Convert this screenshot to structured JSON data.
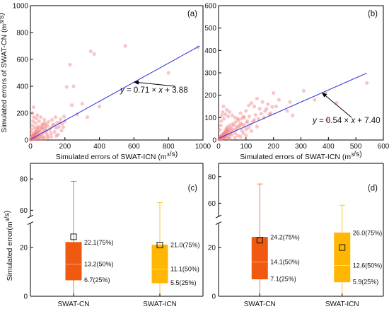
{
  "chart_data": [
    {
      "id": "a",
      "type": "scatter",
      "panel_label": "(a)",
      "xlabel": "Simulated errors of SWAT-ICN (m³/s)",
      "ylabel": "Simulated errors of SWAT-CN (m³/s)",
      "xlim": [
        0,
        1000
      ],
      "ylim": [
        0,
        1000
      ],
      "xticks": [
        0,
        200,
        400,
        600,
        800,
        1000
      ],
      "yticks": [
        0,
        200,
        400,
        600,
        800,
        1000
      ],
      "fit": {
        "slope": 0.71,
        "intercept": 3.88,
        "x_range": [
          0,
          980
        ],
        "equation": "y = 0.71 × x + 3.88"
      },
      "points_color": "#f08080",
      "line_color": "#2b2bd9",
      "points": [
        [
          2,
          5
        ],
        [
          4,
          12
        ],
        [
          6,
          3
        ],
        [
          8,
          20
        ],
        [
          10,
          8
        ],
        [
          12,
          30
        ],
        [
          14,
          15
        ],
        [
          16,
          5
        ],
        [
          18,
          40
        ],
        [
          20,
          22
        ],
        [
          22,
          10
        ],
        [
          25,
          35
        ],
        [
          28,
          18
        ],
        [
          30,
          50
        ],
        [
          32,
          12
        ],
        [
          35,
          28
        ],
        [
          38,
          60
        ],
        [
          40,
          20
        ],
        [
          42,
          45
        ],
        [
          45,
          8
        ],
        [
          48,
          32
        ],
        [
          50,
          70
        ],
        [
          55,
          25
        ],
        [
          60,
          40
        ],
        [
          65,
          90
        ],
        [
          70,
          30
        ],
        [
          75,
          55
        ],
        [
          80,
          20
        ],
        [
          85,
          65
        ],
        [
          90,
          100
        ],
        [
          95,
          45
        ],
        [
          100,
          30
        ],
        [
          110,
          75
        ],
        [
          120,
          50
        ],
        [
          130,
          110
        ],
        [
          140,
          60
        ],
        [
          150,
          90
        ],
        [
          160,
          40
        ],
        [
          170,
          130
        ],
        [
          180,
          70
        ],
        [
          5,
          55
        ],
        [
          8,
          80
        ],
        [
          10,
          110
        ],
        [
          15,
          140
        ],
        [
          20,
          170
        ],
        [
          12,
          200
        ],
        [
          25,
          95
        ],
        [
          30,
          125
        ],
        [
          18,
          245
        ],
        [
          35,
          160
        ],
        [
          40,
          185
        ],
        [
          50,
          140
        ],
        [
          60,
          170
        ],
        [
          70,
          120
        ],
        [
          80,
          150
        ],
        [
          45,
          100
        ],
        [
          200,
          140
        ],
        [
          210,
          395
        ],
        [
          230,
          560
        ],
        [
          240,
          260
        ],
        [
          250,
          400
        ],
        [
          270,
          190
        ],
        [
          300,
          270
        ],
        [
          330,
          170
        ],
        [
          350,
          660
        ],
        [
          370,
          640
        ],
        [
          400,
          250
        ],
        [
          550,
          700
        ],
        [
          800,
          500
        ],
        [
          970,
          690
        ],
        [
          3,
          2
        ],
        [
          5,
          6
        ],
        [
          7,
          15
        ],
        [
          9,
          4
        ],
        [
          11,
          25
        ],
        [
          13,
          9
        ],
        [
          15,
          18
        ],
        [
          17,
          35
        ],
        [
          19,
          14
        ],
        [
          21,
          45
        ],
        [
          23,
          28
        ],
        [
          26,
          60
        ],
        [
          29,
          42
        ],
        [
          33,
          75
        ],
        [
          36,
          52
        ],
        [
          39,
          88
        ],
        [
          44,
          62
        ],
        [
          52,
          84
        ],
        [
          58,
          58
        ],
        [
          63,
          105
        ],
        [
          68,
          78
        ],
        [
          72,
          96
        ],
        [
          78,
          118
        ],
        [
          84,
          86
        ],
        [
          88,
          125
        ],
        [
          92,
          70
        ],
        [
          98,
          108
        ],
        [
          105,
          135
        ],
        [
          115,
          92
        ],
        [
          125,
          150
        ],
        [
          135,
          115
        ],
        [
          145,
          170
        ],
        [
          155,
          128
        ],
        [
          165,
          98
        ],
        [
          175,
          155
        ],
        [
          185,
          120
        ],
        [
          195,
          175
        ],
        [
          190,
          95
        ],
        [
          60,
          10
        ],
        [
          100,
          15
        ],
        [
          120,
          25
        ],
        [
          150,
          30
        ],
        [
          30,
          5
        ],
        [
          75,
          8
        ]
      ]
    },
    {
      "id": "b",
      "type": "scatter",
      "panel_label": "(b)",
      "xlabel": "Simulated errors of SWAT-ICN (m³/s)",
      "ylabel": "",
      "xlim": [
        0,
        600
      ],
      "ylim": [
        0,
        600
      ],
      "xticks": [
        0,
        100,
        200,
        300,
        400,
        500,
        600
      ],
      "yticks": [
        0,
        100,
        200,
        300,
        400,
        500,
        600
      ],
      "fit": {
        "slope": 0.54,
        "intercept": 7.4,
        "x_range": [
          0,
          540
        ],
        "equation": "y = 0.54 × x + 7.40"
      },
      "points_color": "#f08080",
      "line_color": "#2b2bd9",
      "points": [
        [
          2,
          4
        ],
        [
          4,
          10
        ],
        [
          6,
          3
        ],
        [
          8,
          16
        ],
        [
          10,
          7
        ],
        [
          12,
          22
        ],
        [
          14,
          12
        ],
        [
          16,
          5
        ],
        [
          18,
          28
        ],
        [
          20,
          18
        ],
        [
          22,
          9
        ],
        [
          24,
          34
        ],
        [
          26,
          15
        ],
        [
          28,
          40
        ],
        [
          30,
          11
        ],
        [
          32,
          25
        ],
        [
          34,
          48
        ],
        [
          36,
          18
        ],
        [
          38,
          36
        ],
        [
          40,
          8
        ],
        [
          42,
          28
        ],
        [
          45,
          55
        ],
        [
          48,
          22
        ],
        [
          50,
          38
        ],
        [
          55,
          65
        ],
        [
          60,
          30
        ],
        [
          65,
          50
        ],
        [
          70,
          20
        ],
        [
          75,
          58
        ],
        [
          80,
          75
        ],
        [
          85,
          42
        ],
        [
          90,
          30
        ],
        [
          95,
          62
        ],
        [
          100,
          48
        ],
        [
          105,
          85
        ],
        [
          110,
          55
        ],
        [
          115,
          70
        ],
        [
          120,
          40
        ],
        [
          130,
          90
        ],
        [
          140,
          60
        ],
        [
          5,
          45
        ],
        [
          8,
          65
        ],
        [
          10,
          85
        ],
        [
          12,
          110
        ],
        [
          15,
          125
        ],
        [
          18,
          150
        ],
        [
          20,
          95
        ],
        [
          25,
          115
        ],
        [
          30,
          135
        ],
        [
          35,
          105
        ],
        [
          40,
          125
        ],
        [
          50,
          110
        ],
        [
          60,
          100
        ],
        [
          70,
          95
        ],
        [
          80,
          120
        ],
        [
          90,
          105
        ],
        [
          100,
          130
        ],
        [
          110,
          155
        ],
        [
          120,
          165
        ],
        [
          130,
          150
        ],
        [
          140,
          185
        ],
        [
          150,
          140
        ],
        [
          160,
          170
        ],
        [
          170,
          130
        ],
        [
          180,
          160
        ],
        [
          190,
          120
        ],
        [
          200,
          210
        ],
        [
          210,
          150
        ],
        [
          220,
          180
        ],
        [
          250,
          130
        ],
        [
          260,
          170
        ],
        [
          270,
          110
        ],
        [
          310,
          220
        ],
        [
          350,
          180
        ],
        [
          390,
          210
        ],
        [
          395,
          90
        ],
        [
          430,
          165
        ],
        [
          540,
          255
        ],
        [
          3,
          2
        ],
        [
          5,
          5
        ],
        [
          7,
          12
        ],
        [
          9,
          3
        ],
        [
          11,
          18
        ],
        [
          13,
          8
        ],
        [
          15,
          14
        ],
        [
          17,
          26
        ],
        [
          19,
          11
        ],
        [
          21,
          32
        ],
        [
          23,
          20
        ],
        [
          25,
          44
        ],
        [
          27,
          30
        ],
        [
          29,
          52
        ],
        [
          31,
          36
        ],
        [
          33,
          58
        ],
        [
          37,
          42
        ],
        [
          41,
          66
        ],
        [
          46,
          48
        ],
        [
          52,
          72
        ],
        [
          57,
          46
        ],
        [
          62,
          80
        ],
        [
          67,
          60
        ],
        [
          72,
          88
        ],
        [
          78,
          66
        ],
        [
          84,
          95
        ],
        [
          88,
          70
        ],
        [
          94,
          100
        ],
        [
          102,
          78
        ],
        [
          112,
          105
        ],
        [
          125,
          82
        ],
        [
          135,
          112
        ],
        [
          145,
          95
        ],
        [
          155,
          118
        ],
        [
          165,
          100
        ],
        [
          175,
          140
        ],
        [
          185,
          115
        ],
        [
          195,
          148
        ],
        [
          40,
          5
        ],
        [
          60,
          10
        ],
        [
          80,
          15
        ],
        [
          100,
          20
        ]
      ]
    },
    {
      "id": "c",
      "type": "box",
      "panel_label": "(c)",
      "ylabel": "Simulated error(m³/s)",
      "y_axis_break": true,
      "lower_range": [
        0,
        30
      ],
      "upper_range": [
        56,
        90
      ],
      "yticks_lower": [
        0,
        20
      ],
      "yticks_upper": [
        60,
        80
      ],
      "categories": [
        "SWAT-CN",
        "SWAT-ICN"
      ],
      "boxes": [
        {
          "name": "SWAT-CN",
          "color": "#f05a10",
          "q1": 6.7,
          "median": 13.2,
          "q3": 22.1,
          "mean": 24.4,
          "whisker_low": 0.5,
          "whisker_high": 78.5,
          "labels": [
            "22.1(75%)",
            "13.2(50%)",
            "6.7(25%)"
          ]
        },
        {
          "name": "SWAT-ICN",
          "color": "#ffb703",
          "q1": 5.5,
          "median": 11.1,
          "q3": 21.0,
          "mean": 21.0,
          "whisker_low": 0.5,
          "whisker_high": 65.0,
          "labels": [
            "21.0(75%)",
            "11.1(50%)",
            "5.5(25%)"
          ]
        }
      ]
    },
    {
      "id": "d",
      "type": "box",
      "panel_label": "(d)",
      "ylabel": "",
      "y_axis_break": true,
      "lower_range": [
        0,
        30
      ],
      "upper_range": [
        50,
        90
      ],
      "yticks_lower": [
        0,
        20
      ],
      "yticks_upper": [
        60,
        80
      ],
      "categories": [
        "SWAT-CN",
        "SWAT-ICN"
      ],
      "boxes": [
        {
          "name": "SWAT-CN",
          "color": "#f05a10",
          "q1": 7.1,
          "median": 14.1,
          "q3": 24.2,
          "mean": 23.0,
          "whisker_low": 0.5,
          "whisker_high": 74.5,
          "labels": [
            "24.2(75%)",
            "14.1(50%)",
            "7.1(25%)"
          ]
        },
        {
          "name": "SWAT-ICN",
          "color": "#ffb703",
          "q1": 5.9,
          "median": 12.6,
          "q3": 26.0,
          "mean": 20.0,
          "whisker_low": 0.5,
          "whisker_high": 58.5,
          "labels": [
            "26.0(75%)",
            "12.6(50%)",
            "5.9(25%)"
          ]
        }
      ]
    }
  ]
}
